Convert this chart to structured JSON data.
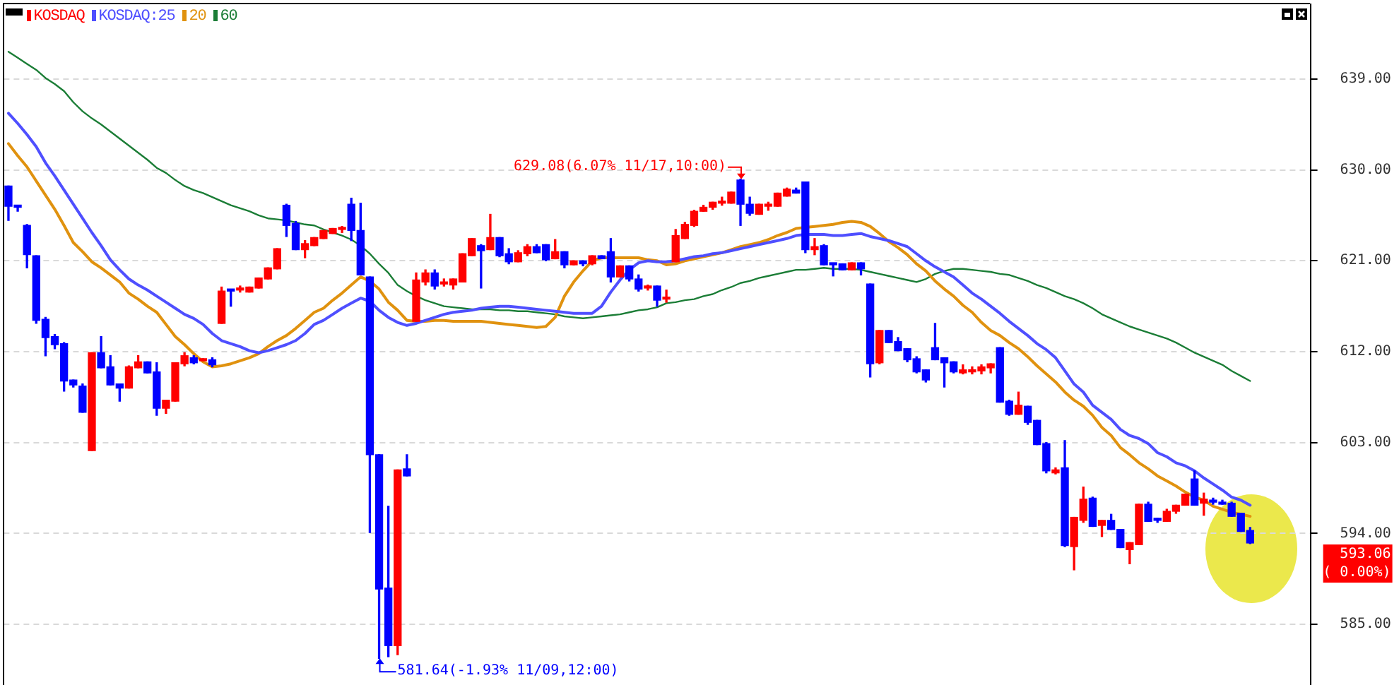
{
  "chart_data": {
    "type": "candlestick",
    "categories": [
      null,
      null,
      null,
      null,
      null,
      null,
      null,
      null,
      null,
      null,
      null,
      null,
      null,
      null,
      null,
      null,
      null,
      null,
      null,
      null,
      null,
      null,
      null,
      null,
      null,
      null,
      null,
      null,
      null,
      null,
      null,
      null,
      null,
      null,
      null,
      null,
      null,
      null,
      null,
      null,
      null,
      null,
      null,
      null,
      null,
      null,
      null,
      null,
      null,
      null,
      null,
      null,
      null,
      null,
      null,
      null,
      null,
      null,
      null,
      null,
      null,
      null,
      null,
      null,
      null,
      null,
      null,
      null,
      null,
      null,
      null,
      null,
      null,
      null,
      null,
      null,
      null,
      null,
      null,
      null,
      null,
      null,
      null,
      null,
      null,
      null,
      null,
      null,
      null,
      null,
      null,
      null,
      null,
      null,
      null,
      null,
      null,
      null,
      null,
      null,
      null,
      null,
      null,
      null,
      null,
      null,
      null,
      null,
      null,
      null,
      null,
      null,
      null,
      null,
      null,
      null,
      null,
      null,
      null,
      null,
      null,
      null,
      null,
      null,
      null,
      null,
      null,
      null,
      null,
      null,
      null,
      null,
      null,
      null,
      null,
      null,
      null,
      null,
      null,
      null,
      null
    ],
    "series": [
      {
        "name": "KOSDAQ",
        "color": "#ff0000",
        "colors": [
          "#0000ff",
          "#0000ff",
          "#0000ff",
          "#0000ff",
          "#0000ff",
          "#0000ff",
          "#0000ff",
          "#0000ff",
          "#0000ff",
          "#ff0000",
          "#0000ff",
          "#0000ff",
          "#0000ff",
          "#ff0000",
          "#ff0000",
          "#0000ff",
          "#0000ff",
          "#ff0000",
          "#ff0000",
          "#ff0000",
          "#0000ff",
          "#ff0000",
          "#0000ff",
          "#ff0000",
          "#0000ff",
          "#ff0000",
          "#ff0000",
          "#ff0000",
          "#ff0000",
          "#ff0000",
          "#0000ff",
          "#0000ff",
          "#ff0000",
          "#ff0000",
          "#ff0000",
          "#ff0000",
          "#ff0000",
          "#0000ff",
          "#0000ff",
          "#0000ff",
          "#0000ff",
          "#0000ff",
          "#ff0000",
          "#0000ff",
          "#ff0000",
          "#ff0000",
          "#0000ff",
          "#ff0000",
          "#ff0000",
          "#ff0000",
          "#ff0000",
          "#0000ff",
          "#ff0000",
          "#0000ff",
          "#0000ff",
          "#ff0000",
          "#ff0000",
          "#0000ff",
          "#0000ff",
          "#ff0000",
          "#0000ff",
          "#ff0000",
          "#0000ff",
          "#ff0000",
          "#0000ff",
          "#0000ff",
          "#ff0000",
          "#0000ff",
          "#0000ff",
          "#ff0000",
          "#0000ff",
          "#ff0000",
          "#ff0000",
          "#ff0000",
          "#ff0000",
          "#ff0000",
          "#ff0000",
          "#ff0000",
          "#ff0000",
          "#0000ff",
          "#0000ff",
          "#ff0000",
          "#ff0000",
          "#ff0000",
          "#ff0000",
          "#0000ff",
          "#0000ff",
          "#ff0000",
          "#0000ff",
          "#0000ff",
          "#0000ff",
          "#ff0000",
          "#0000ff",
          "#0000ff",
          "#ff0000",
          "#0000ff",
          "#0000ff",
          "#0000ff",
          "#0000ff",
          "#0000ff",
          "#0000ff",
          "#0000ff",
          "#0000ff",
          "#ff0000",
          "#ff0000",
          "#ff0000",
          "#ff0000",
          "#0000ff",
          "#0000ff",
          "#ff0000",
          "#0000ff",
          "#0000ff",
          "#0000ff",
          "#ff0000",
          "#0000ff",
          "#ff0000",
          "#ff0000",
          "#0000ff",
          "#ff0000",
          "#0000ff",
          "#0000ff",
          "#ff0000",
          "#ff0000",
          "#0000ff",
          "#0000ff",
          "#ff0000",
          "#ff0000",
          "#ff0000",
          "#0000ff",
          "#ff0000",
          "#0000ff",
          "#0000ff",
          "#0000ff",
          "#0000ff",
          "#0000ff",
          null,
          null,
          null,
          null,
          null,
          null
        ],
        "ohlc": [
          [
            628.4,
            628.4,
            625.0,
            626.4
          ],
          [
            626.5,
            626.5,
            625.9,
            626.3
          ],
          [
            624.5,
            624.6,
            620.3,
            621.6
          ],
          [
            621.5,
            621.5,
            614.8,
            615.1
          ],
          [
            615.2,
            615.4,
            611.6,
            613.4
          ],
          [
            613.5,
            613.7,
            612.3,
            612.7
          ],
          [
            612.8,
            612.9,
            608.1,
            609.1
          ],
          [
            609.2,
            609.2,
            608.5,
            608.7
          ],
          [
            608.6,
            608.8,
            606.0,
            606.0
          ],
          [
            602.2,
            611.9,
            602.2,
            611.9
          ],
          [
            611.9,
            613.5,
            610.4,
            610.4
          ],
          [
            610.5,
            611.6,
            608.7,
            608.7
          ],
          [
            608.8,
            608.8,
            607.1,
            608.4
          ],
          [
            608.4,
            610.6,
            608.4,
            610.5
          ],
          [
            610.4,
            611.6,
            610.4,
            611.0
          ],
          [
            611.0,
            611.0,
            609.9,
            609.9
          ],
          [
            610.0,
            610.9,
            605.7,
            606.4
          ],
          [
            606.4,
            607.2,
            605.9,
            607.2
          ],
          [
            607.1,
            610.9,
            607.1,
            610.9
          ],
          [
            610.8,
            611.9,
            610.6,
            611.6
          ],
          [
            611.4,
            611.6,
            610.8,
            610.9
          ],
          [
            611.1,
            611.3,
            611.1,
            611.3
          ],
          [
            611.2,
            611.4,
            610.5,
            610.7
          ],
          [
            614.8,
            618.4,
            614.8,
            618.0
          ],
          [
            618.1,
            618.1,
            616.5,
            618.0
          ],
          [
            618.1,
            618.5,
            617.9,
            618.2
          ],
          [
            617.9,
            618.4,
            617.9,
            618.4
          ],
          [
            618.3,
            619.3,
            618.3,
            619.3
          ],
          [
            619.2,
            620.3,
            619.2,
            620.3
          ],
          [
            620.2,
            622.2,
            620.2,
            622.2
          ],
          [
            626.5,
            626.6,
            623.4,
            624.5
          ],
          [
            624.7,
            624.9,
            622.1,
            622.1
          ],
          [
            622.1,
            623.0,
            621.3,
            622.7
          ],
          [
            622.5,
            623.3,
            622.5,
            623.3
          ],
          [
            623.2,
            624.0,
            623.2,
            624.0
          ],
          [
            623.7,
            624.2,
            623.7,
            624.2
          ],
          [
            624.1,
            624.4,
            623.8,
            624.2
          ],
          [
            626.6,
            627.2,
            623.0,
            624.0
          ],
          [
            624.0,
            626.7,
            619.6,
            619.6
          ],
          [
            619.4,
            619.4,
            594.1,
            601.8
          ],
          [
            601.8,
            601.8,
            581.64,
            588.5
          ],
          [
            588.6,
            596.7,
            581.8,
            582.9
          ],
          [
            582.9,
            600.3,
            582.0,
            600.3
          ],
          [
            600.4,
            601.8,
            599.7,
            599.7
          ],
          [
            615.0,
            619.8,
            615.0,
            619.1
          ],
          [
            618.9,
            620.1,
            618.6,
            619.8
          ],
          [
            619.8,
            620.1,
            618.2,
            618.5
          ],
          [
            618.7,
            619.2,
            618.5,
            618.9
          ],
          [
            618.6,
            619.2,
            618.2,
            619.2
          ],
          [
            618.9,
            621.7,
            618.9,
            621.7
          ],
          [
            621.5,
            623.2,
            621.5,
            623.2
          ],
          [
            622.5,
            622.6,
            618.3,
            622.0
          ],
          [
            622.1,
            625.6,
            622.1,
            623.3
          ],
          [
            623.3,
            623.3,
            621.4,
            621.5
          ],
          [
            621.7,
            622.2,
            620.7,
            620.9
          ],
          [
            620.9,
            622.0,
            620.9,
            621.8
          ],
          [
            621.7,
            622.6,
            621.5,
            622.4
          ],
          [
            622.4,
            622.6,
            621.8,
            621.8
          ],
          [
            622.6,
            622.6,
            621.0,
            621.1
          ],
          [
            621.2,
            623.1,
            621.2,
            621.9
          ],
          [
            621.9,
            621.9,
            620.3,
            620.6
          ],
          [
            620.6,
            621.0,
            620.6,
            621.0
          ],
          [
            621.0,
            621.0,
            620.5,
            620.7
          ],
          [
            620.7,
            621.5,
            620.6,
            621.5
          ],
          [
            621.5,
            621.5,
            621.2,
            621.2
          ],
          [
            621.9,
            623.2,
            618.9,
            619.4
          ],
          [
            619.4,
            620.5,
            619.4,
            620.5
          ],
          [
            620.5,
            620.5,
            619.0,
            619.2
          ],
          [
            619.2,
            619.6,
            618.0,
            618.2
          ],
          [
            618.3,
            618.6,
            618.1,
            618.4
          ],
          [
            618.5,
            618.5,
            616.5,
            617.1
          ],
          [
            617.2,
            618.1,
            616.9,
            617.4
          ],
          [
            620.9,
            624.1,
            620.9,
            623.5
          ],
          [
            623.2,
            624.8,
            623.2,
            624.6
          ],
          [
            624.5,
            626.0,
            624.4,
            625.9
          ],
          [
            625.9,
            626.5,
            625.9,
            626.3
          ],
          [
            626.3,
            626.8,
            626.1,
            626.8
          ],
          [
            626.7,
            627.3,
            626.5,
            626.9
          ],
          [
            626.7,
            627.8,
            626.7,
            627.8
          ],
          [
            629.0,
            629.08,
            624.5,
            626.6
          ],
          [
            626.6,
            627.3,
            625.5,
            625.7
          ],
          [
            625.6,
            626.6,
            625.6,
            626.6
          ],
          [
            626.4,
            626.8,
            626.0,
            626.5
          ],
          [
            626.4,
            627.7,
            626.4,
            627.7
          ],
          [
            627.4,
            628.2,
            627.4,
            628.1
          ],
          [
            628.0,
            628.2,
            627.7,
            627.7
          ],
          [
            628.8,
            628.8,
            621.8,
            622.1
          ],
          [
            622.1,
            623.2,
            621.6,
            622.4
          ],
          [
            622.5,
            622.6,
            620.6,
            620.6
          ],
          [
            620.7,
            620.7,
            619.5,
            620.6
          ],
          [
            620.7,
            620.7,
            620.1,
            620.1
          ],
          [
            620.1,
            620.8,
            620.1,
            620.8
          ],
          [
            620.8,
            620.8,
            619.6,
            620.2
          ],
          [
            618.7,
            618.7,
            609.5,
            610.8
          ],
          [
            610.9,
            614.1,
            610.8,
            614.1
          ],
          [
            614.1,
            614.1,
            612.9,
            612.9
          ],
          [
            613.0,
            613.4,
            612.1,
            612.1
          ],
          [
            612.3,
            612.3,
            611.0,
            611.2
          ],
          [
            611.3,
            611.5,
            609.9,
            610.0
          ],
          [
            610.2,
            610.2,
            609.0,
            609.2
          ],
          [
            612.4,
            614.8,
            611.2,
            611.2
          ],
          [
            611.4,
            611.4,
            608.5,
            610.9
          ],
          [
            611.0,
            611.0,
            609.9,
            610.0
          ],
          [
            609.9,
            610.7,
            609.8,
            610.2
          ],
          [
            610.0,
            610.5,
            609.8,
            610.2
          ],
          [
            610.1,
            610.7,
            609.8,
            610.5
          ],
          [
            610.4,
            610.8,
            609.9,
            610.8
          ],
          [
            612.4,
            612.4,
            607.0,
            607.0
          ],
          [
            607.1,
            607.2,
            605.7,
            605.8
          ],
          [
            605.8,
            608.0,
            605.8,
            606.7
          ],
          [
            606.6,
            606.6,
            604.8,
            605.0
          ],
          [
            605.2,
            605.2,
            602.8,
            602.8
          ],
          [
            602.9,
            603.0,
            600.0,
            600.2
          ],
          [
            600.0,
            600.5,
            599.9,
            600.3
          ],
          [
            600.5,
            603.2,
            592.7,
            592.8
          ],
          [
            592.7,
            595.6,
            590.4,
            595.6
          ],
          [
            595.3,
            598.6,
            595.1,
            597.4
          ],
          [
            597.5,
            597.6,
            594.7,
            594.7
          ],
          [
            594.8,
            595.3,
            593.7,
            595.3
          ],
          [
            595.3,
            595.9,
            594.4,
            594.4
          ],
          [
            594.4,
            594.4,
            592.6,
            592.6
          ],
          [
            592.4,
            593.1,
            591.0,
            593.1
          ],
          [
            592.9,
            596.9,
            592.9,
            596.9
          ],
          [
            596.9,
            597.1,
            595.2,
            595.2
          ],
          [
            595.4,
            595.5,
            595.1,
            595.3
          ],
          [
            595.2,
            596.4,
            595.2,
            596.2
          ],
          [
            596.2,
            596.8,
            596.0,
            596.8
          ],
          [
            596.8,
            597.9,
            596.8,
            597.9
          ],
          [
            599.4,
            600.2,
            596.8,
            596.8
          ],
          [
            597.0,
            598.0,
            595.8,
            597.4
          ],
          [
            597.3,
            597.5,
            596.9,
            597.1
          ],
          [
            597.1,
            597.3,
            596.9,
            596.9
          ],
          [
            597.0,
            597.1,
            595.7,
            595.7
          ],
          [
            596.0,
            596.0,
            594.2,
            594.2
          ],
          [
            594.3,
            594.6,
            593.0,
            593.06
          ],
          null,
          null,
          null,
          null,
          null,
          null
        ]
      },
      {
        "name": "KOSDAQ:25",
        "type": "line",
        "color": "#4f4fff",
        "values": [
          635.6,
          634.6,
          633.5,
          632.3,
          630.7,
          629.4,
          628.0,
          626.6,
          625.2,
          623.8,
          622.5,
          621.1,
          620.1,
          619.2,
          618.6,
          618.1,
          617.5,
          616.9,
          616.3,
          615.7,
          615.3,
          614.7,
          613.8,
          613.1,
          612.8,
          612.5,
          612.1,
          611.9,
          612.1,
          612.4,
          612.7,
          613.1,
          613.8,
          614.7,
          615.1,
          615.7,
          616.3,
          616.8,
          617.3,
          617.0,
          616.1,
          615.4,
          614.9,
          614.6,
          614.8,
          615.1,
          615.4,
          615.7,
          615.9,
          616.0,
          616.1,
          616.3,
          616.4,
          616.5,
          616.5,
          616.4,
          616.3,
          616.2,
          616.1,
          616.0,
          615.9,
          615.8,
          615.8,
          615.8,
          616.5,
          617.9,
          619.1,
          620.1,
          620.8,
          621.0,
          620.9,
          620.9,
          621.0,
          621.2,
          621.4,
          621.5,
          621.7,
          621.8,
          622.0,
          622.2,
          622.4,
          622.6,
          622.8,
          623.0,
          623.2,
          623.5,
          623.6,
          623.6,
          623.6,
          623.5,
          623.5,
          623.6,
          623.7,
          623.4,
          623.2,
          623.0,
          622.7,
          622.4,
          621.7,
          621.0,
          620.4,
          619.9,
          619.4,
          618.6,
          617.8,
          617.2,
          616.5,
          615.8,
          615.0,
          614.3,
          613.6,
          612.8,
          612.2,
          611.4,
          610.1,
          608.8,
          608.0,
          606.7,
          606.0,
          605.3,
          604.3,
          603.7,
          603.4,
          602.9,
          602.0,
          601.6,
          601.0,
          600.7,
          600.2,
          599.5,
          598.9,
          598.3,
          597.6,
          597.3,
          596.8,
          null,
          null,
          null,
          null,
          null,
          null
        ]
      },
      {
        "name": "20",
        "type": "line",
        "color": "#e0920f",
        "values": [
          632.6,
          631.4,
          630.3,
          628.9,
          627.5,
          626.1,
          624.5,
          622.8,
          621.9,
          620.9,
          620.3,
          619.6,
          618.9,
          617.8,
          617.2,
          616.5,
          615.9,
          614.7,
          613.5,
          612.7,
          611.8,
          611.0,
          610.5,
          610.6,
          610.8,
          611.1,
          611.4,
          611.8,
          612.5,
          613.1,
          613.6,
          614.3,
          615.1,
          615.9,
          616.3,
          617.1,
          617.8,
          618.6,
          619.4,
          619.0,
          618.2,
          616.9,
          616.1,
          615.1,
          615.0,
          615.0,
          615.1,
          615.1,
          615.0,
          615.0,
          615.0,
          615.0,
          614.9,
          614.8,
          614.7,
          614.6,
          614.5,
          614.4,
          614.5,
          615.4,
          617.5,
          618.9,
          620.0,
          621.0,
          621.3,
          621.3,
          621.3,
          621.3,
          621.3,
          621.1,
          621.0,
          620.6,
          620.7,
          621.0,
          621.2,
          621.4,
          621.6,
          621.8,
          622.1,
          622.4,
          622.6,
          622.8,
          623.1,
          623.5,
          623.8,
          624.2,
          624.3,
          624.4,
          624.5,
          624.6,
          624.8,
          624.9,
          624.8,
          624.4,
          623.7,
          622.9,
          622.3,
          621.6,
          620.7,
          620.0,
          619.0,
          618.2,
          617.5,
          616.6,
          615.9,
          614.9,
          614.1,
          613.6,
          612.9,
          612.3,
          611.5,
          610.6,
          609.8,
          609.0,
          608.0,
          607.2,
          606.6,
          605.7,
          604.5,
          603.7,
          602.5,
          601.8,
          601.0,
          600.4,
          599.7,
          599.2,
          598.7,
          598.1,
          597.6,
          597.3,
          596.7,
          596.4,
          596.1,
          595.9,
          595.7,
          null,
          null,
          null,
          null,
          null,
          null
        ]
      },
      {
        "name": "60",
        "type": "line",
        "color": "#1b7d36",
        "values": [
          641.7,
          641.1,
          640.5,
          639.9,
          639.1,
          638.5,
          637.8,
          636.7,
          635.8,
          635.1,
          634.5,
          633.8,
          633.1,
          632.4,
          631.7,
          631.0,
          630.2,
          629.7,
          629.0,
          628.4,
          628.0,
          627.7,
          627.3,
          626.9,
          626.5,
          626.2,
          625.9,
          625.5,
          625.2,
          625.1,
          625.0,
          624.8,
          624.6,
          624.5,
          624.1,
          623.8,
          623.5,
          623.1,
          622.5,
          621.7,
          620.7,
          619.8,
          618.6,
          618.0,
          617.5,
          617.1,
          616.8,
          616.5,
          616.4,
          616.3,
          616.2,
          616.2,
          616.2,
          616.1,
          616.1,
          616.0,
          616.0,
          615.9,
          615.8,
          615.7,
          615.5,
          615.4,
          615.3,
          615.4,
          615.5,
          615.6,
          615.7,
          615.9,
          616.1,
          616.2,
          616.4,
          616.8,
          616.9,
          617.1,
          617.2,
          617.5,
          617.7,
          618.1,
          618.4,
          618.8,
          619.0,
          619.3,
          619.5,
          619.7,
          619.9,
          620.1,
          620.1,
          620.2,
          620.3,
          620.2,
          620.2,
          620.2,
          620.1,
          619.9,
          619.7,
          619.5,
          619.3,
          619.1,
          618.9,
          619.2,
          619.7,
          620.0,
          620.2,
          620.2,
          620.1,
          620.0,
          619.9,
          619.7,
          619.6,
          619.3,
          619.0,
          618.6,
          618.3,
          617.9,
          617.5,
          617.2,
          616.8,
          616.3,
          615.7,
          615.3,
          614.9,
          614.5,
          614.2,
          613.9,
          613.6,
          613.3,
          612.9,
          612.4,
          611.9,
          611.5,
          611.1,
          610.7,
          610.1,
          609.6,
          609.1,
          null,
          null,
          null,
          null,
          null,
          null
        ]
      }
    ],
    "ylim": [
      579.0,
      646.4
    ],
    "yticks": [
      {
        "value": 585,
        "label": "585.00"
      },
      {
        "value": 594,
        "label": "594.00"
      },
      {
        "value": 603,
        "label": "603.00"
      },
      {
        "value": 612,
        "label": "612.00"
      },
      {
        "value": 621,
        "label": "621.00"
      },
      {
        "value": 630,
        "label": "630.00"
      },
      {
        "value": 639,
        "label": "639.00"
      }
    ],
    "grid": "y",
    "legend": "top left",
    "tick_labels": "y",
    "annotations": [
      "629.08(6.07% 11/17,10:00)",
      "581.64(-1.93% 11/09,12:00)",
      "593.06",
      "( 0.00%)"
    ]
  }
}
